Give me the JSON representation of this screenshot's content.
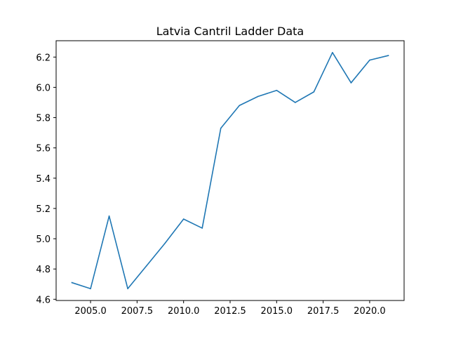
{
  "chart_data": {
    "type": "line",
    "title": "Latvia Cantril Ladder Data",
    "xlabel": "",
    "ylabel": "",
    "x": [
      2004,
      2005,
      2006,
      2007,
      2008,
      2009,
      2010,
      2011,
      2012,
      2013,
      2014,
      2015,
      2016,
      2017,
      2018,
      2019,
      2020,
      2021
    ],
    "series": [
      {
        "values": [
          4.71,
          4.67,
          5.15,
          4.67,
          4.82,
          4.97,
          5.13,
          5.07,
          5.73,
          5.88,
          5.94,
          5.98,
          5.9,
          5.97,
          6.23,
          6.03,
          6.18,
          6.21
        ],
        "color": "#1f77b4"
      }
    ],
    "xlim": [
      2003.15,
      2021.85
    ],
    "ylim": [
      4.592,
      6.308
    ],
    "xticks": [
      2005.0,
      2007.5,
      2010.0,
      2012.5,
      2015.0,
      2017.5,
      2020.0
    ],
    "xtick_labels": [
      "2005.0",
      "2007.5",
      "2010.0",
      "2012.5",
      "2015.0",
      "2017.5",
      "2020.0"
    ],
    "yticks": [
      4.6,
      4.8,
      5.0,
      5.2,
      5.4,
      5.6,
      5.8,
      6.0,
      6.2
    ],
    "ytick_labels": [
      "4.6",
      "4.8",
      "5.0",
      "5.2",
      "5.4",
      "5.6",
      "5.8",
      "6.0",
      "6.2"
    ],
    "grid": false,
    "legend": "none"
  }
}
